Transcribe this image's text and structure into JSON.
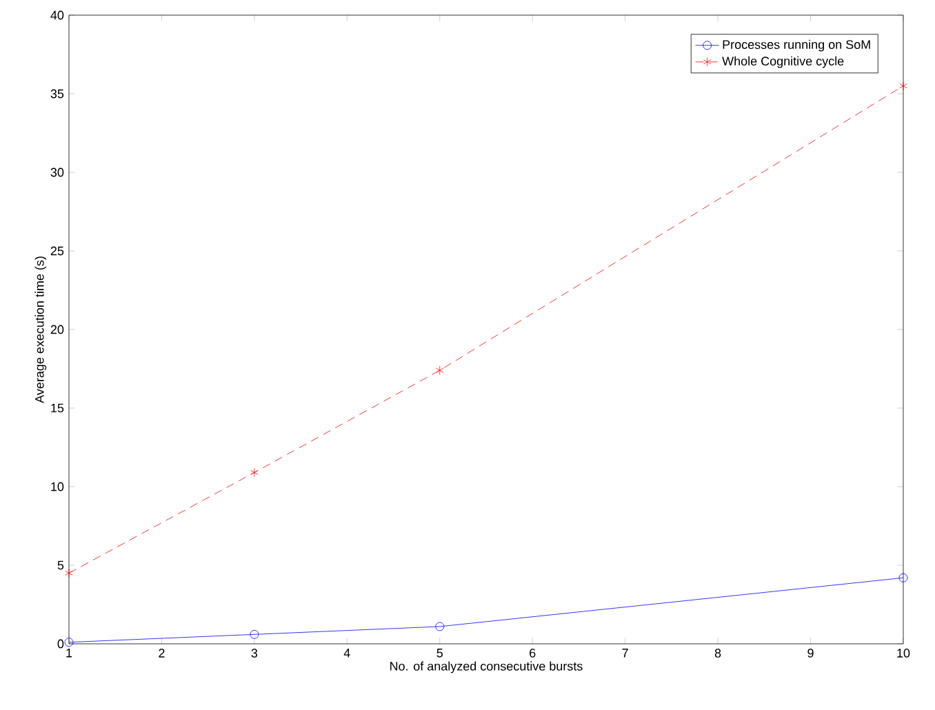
{
  "chart_data": {
    "type": "line",
    "xlabel": "No. of analyzed consecutive bursts",
    "ylabel": "Average execution time (s)",
    "x": [
      1,
      3,
      5,
      10
    ],
    "series": [
      {
        "name": "Processes running on SoM",
        "color": "#0000ff",
        "values": [
          0.1,
          0.6,
          1.1,
          4.2
        ],
        "marker": "circle",
        "line_style": "solid"
      },
      {
        "name": "Whole Cognitive cycle",
        "color": "#ff0000",
        "values": [
          4.5,
          10.9,
          17.4,
          35.5
        ],
        "marker": "cross",
        "line_style": "dashed"
      }
    ],
    "xlim": [
      1,
      10
    ],
    "ylim": [
      0,
      40
    ],
    "xticks": [
      1,
      2,
      3,
      4,
      5,
      6,
      7,
      8,
      9,
      10
    ],
    "yticks": [
      0,
      5,
      10,
      15,
      20,
      25,
      30,
      35,
      40
    ],
    "grid": false,
    "legend": "top right"
  }
}
